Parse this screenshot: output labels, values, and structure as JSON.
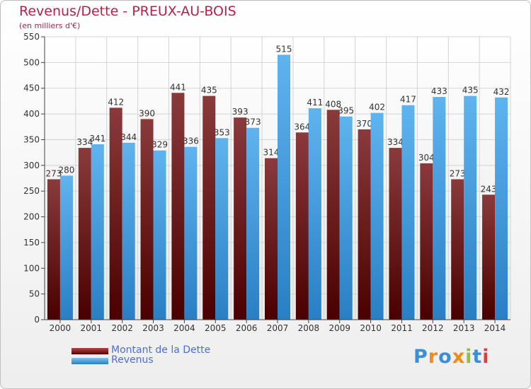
{
  "title": "Revenus/Dette - PREUX-AU-BOIS",
  "subtitle": "(en milliers d'€)",
  "logo": {
    "text": "Proxiti",
    "letter_colors": [
      "#3a8fd8",
      "#f08a1c",
      "#3a8fd8",
      "#f08a1c",
      "#8cc43c",
      "#3a8fd8",
      "#e23c3c"
    ]
  },
  "legend": [
    {
      "label": "Montant de la Dette",
      "color": "#7a1010"
    },
    {
      "label": "Revenus",
      "color": "#3f9fe6"
    }
  ],
  "chart_data": {
    "type": "bar",
    "title": "Revenus/Dette - PREUX-AU-BOIS",
    "subtitle": "(en milliers d'€)",
    "xlabel": "",
    "ylabel": "",
    "ylim": [
      0,
      550
    ],
    "yticks": [
      0,
      50,
      100,
      150,
      200,
      250,
      300,
      350,
      400,
      450,
      500,
      550
    ],
    "grid": true,
    "legend_position": "bottom-left",
    "categories": [
      "2000",
      "2001",
      "2002",
      "2003",
      "2004",
      "2005",
      "2006",
      "2007",
      "2008",
      "2009",
      "2010",
      "2011",
      "2012",
      "2013",
      "2014"
    ],
    "series": [
      {
        "name": "Montant de la Dette",
        "color": "#7a1010",
        "values": [
          273,
          334,
          412,
          390,
          441,
          435,
          393,
          314,
          364,
          408,
          370,
          334,
          304,
          273,
          243
        ]
      },
      {
        "name": "Revenus",
        "color": "#3f9fe6",
        "values": [
          280,
          341,
          344,
          329,
          336,
          353,
          373,
          515,
          411,
          395,
          402,
          417,
          433,
          435,
          432
        ]
      }
    ]
  }
}
